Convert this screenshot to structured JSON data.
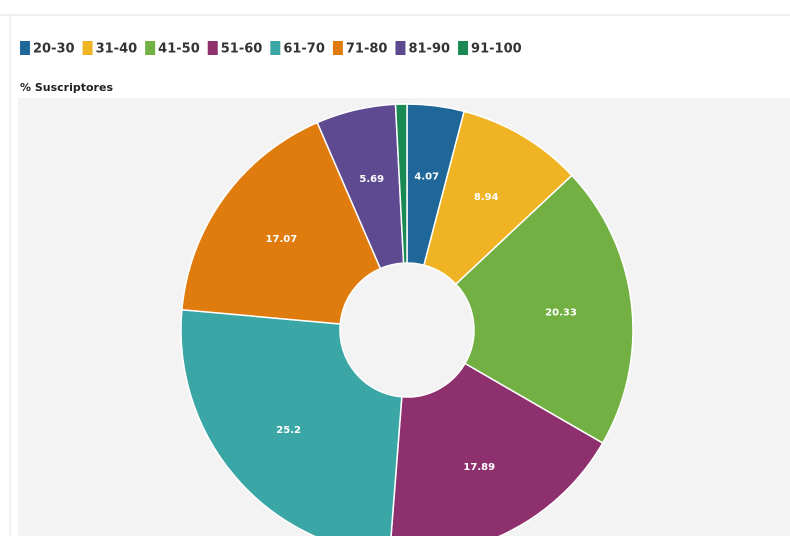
{
  "chart_data": {
    "type": "donut",
    "title": "% Suscriptores",
    "categories": [
      "20-30",
      "31-40",
      "41-50",
      "51-60",
      "61-70",
      "71-80",
      "81-90",
      "91-100"
    ],
    "values": [
      4.07,
      8.94,
      20.33,
      17.89,
      25.2,
      17.07,
      5.69,
      0.81
    ],
    "colors": [
      "#1f6799",
      "#f0b323",
      "#72b043",
      "#8e2f6e",
      "#3ba6a6",
      "#e07b0e",
      "#5e4a91",
      "#1a8a55"
    ],
    "legend": "top"
  }
}
